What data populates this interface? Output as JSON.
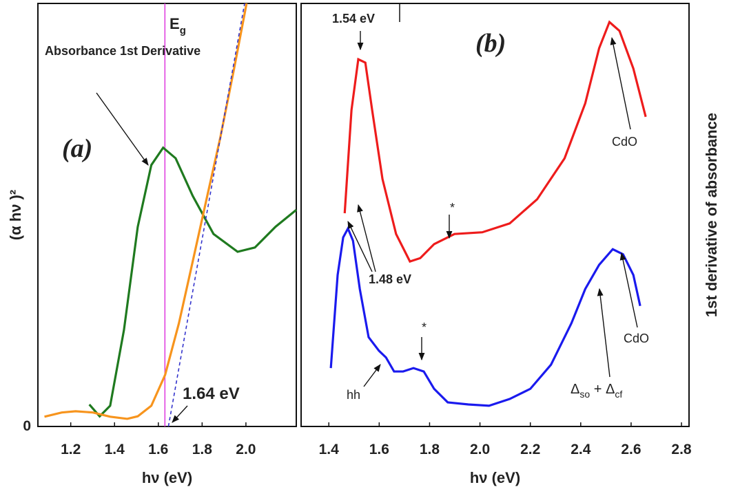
{
  "chart_data": [
    {
      "type": "line",
      "panel_label": "(a)",
      "xlabel": "hν (eV)",
      "ylabel": "(α hν )²",
      "xlim": [
        1.05,
        2.23
      ],
      "ylim": [
        0,
        100
      ],
      "xticks": [
        1.2,
        1.4,
        1.6,
        1.8,
        {
          "value": 2,
          "label": "2.0"
        }
      ],
      "yticks": [
        0
      ],
      "eg_line": {
        "x": 1.63,
        "label": [
          "E",
          "g"
        ],
        "color": "#e040e0"
      },
      "series": [
        {
          "name": "Absorbance 1st Derivative",
          "color": "#1f7a1f",
          "x": [
            1.285,
            1.332,
            1.38,
            1.443,
            1.506,
            1.568,
            1.622,
            1.679,
            1.757,
            1.852,
            1.962,
            2.041,
            2.135,
            2.23
          ],
          "values": [
            5.2,
            2.4,
            4.9,
            22.8,
            47.2,
            61.8,
            65.9,
            63.4,
            54.5,
            45.5,
            41.3,
            42.3,
            47.2,
            51.2
          ]
        },
        {
          "color": "#f7941d",
          "x": [
            1.08,
            1.159,
            1.222,
            1.301,
            1.38,
            1.458,
            1.506,
            1.568,
            1.631,
            1.694,
            1.757,
            1.82,
            1.883,
            1.946,
            2.003
          ],
          "values": [
            2.3,
            3.3,
            3.6,
            3.3,
            2.3,
            1.8,
            2.4,
            4.9,
            12.2,
            24.4,
            39.0,
            53.7,
            68.3,
            84.6,
            100
          ]
        },
        {
          "color": "#3333cc",
          "dashed": true,
          "x": [
            1.646,
            1.994
          ],
          "values": [
            0,
            100
          ]
        }
      ],
      "annotations": [
        "1.64 eV"
      ]
    },
    {
      "type": "line",
      "panel_label": "(b)",
      "xlabel": "hν (eV)",
      "ylabel": "1st derivative of absorbance",
      "xlim": [
        1.29,
        2.83
      ],
      "ylim": [
        0,
        100
      ],
      "xticks": [
        1.4,
        1.6,
        1.8,
        {
          "value": 2,
          "label": "2.0"
        },
        2.2,
        2.4,
        2.6,
        2.8
      ],
      "series": [
        {
          "color": "#ee1c1c",
          "x": [
            1.463,
            1.49,
            1.517,
            1.545,
            1.572,
            1.613,
            1.667,
            1.722,
            1.763,
            1.818,
            1.899,
            2.009,
            2.118,
            2.227,
            2.336,
            2.418,
            2.473,
            2.514,
            2.554,
            2.609,
            2.658
          ],
          "values": [
            50.4,
            74.8,
            86.8,
            86.0,
            74.8,
            58.5,
            45.5,
            39.0,
            39.8,
            43.1,
            45.5,
            45.9,
            48.0,
            53.7,
            63.4,
            76.4,
            89.4,
            95.6,
            93.5,
            84.6,
            73.2
          ]
        },
        {
          "color": "#1a1aee",
          "x": [
            1.408,
            1.435,
            1.457,
            1.476,
            1.496,
            1.523,
            1.558,
            1.599,
            1.627,
            1.659,
            1.695,
            1.736,
            1.777,
            1.818,
            1.872,
            1.954,
            2.036,
            2.118,
            2.2,
            2.282,
            2.363,
            2.418,
            2.473,
            2.527,
            2.568,
            2.609,
            2.636
          ],
          "values": [
            13.8,
            35.8,
            44.7,
            46.8,
            43.9,
            32.5,
            21.1,
            17.9,
            16.3,
            13.0,
            13.0,
            13.8,
            13.0,
            8.9,
            5.7,
            5.2,
            4.9,
            6.5,
            8.9,
            14.6,
            24.4,
            32.5,
            38.2,
            41.9,
            40.7,
            35.8,
            28.5
          ]
        }
      ],
      "annotations": [
        "1.54 eV",
        "CdO",
        "*",
        "1.48 eV",
        "*",
        "hh",
        "CdO",
        [
          "Δ",
          "so",
          " + Δ",
          "cf"
        ]
      ]
    }
  ]
}
